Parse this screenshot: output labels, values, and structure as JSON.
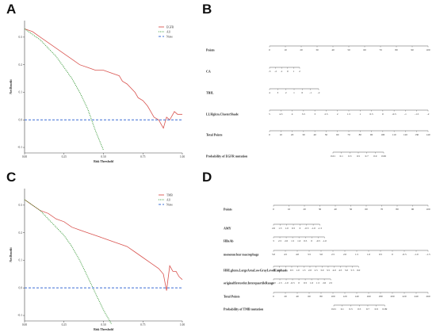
{
  "panels": {
    "A": "A",
    "B": "B",
    "C": "C",
    "D": "D"
  },
  "chart_data": [
    {
      "type": "line",
      "panel": "A",
      "xlabel": "Risk Threshold",
      "ylabel": "Net Benefit",
      "xlim": [
        0,
        1
      ],
      "ylim": [
        -0.12,
        0.36
      ],
      "xticks": [
        "0.00",
        "0.25",
        "0.50",
        "0.75",
        "1.00"
      ],
      "yticks": [
        "-0.1",
        "0.0",
        "0.1",
        "0.2",
        "0.3"
      ],
      "legend_position": "top-right",
      "series": [
        {
          "name": "EGFR",
          "color": "#d9534f",
          "dash": "solid",
          "x": [
            0.0,
            0.05,
            0.1,
            0.15,
            0.2,
            0.25,
            0.3,
            0.35,
            0.4,
            0.45,
            0.5,
            0.55,
            0.6,
            0.62,
            0.65,
            0.7,
            0.72,
            0.75,
            0.78,
            0.8,
            0.82,
            0.85,
            0.88,
            0.9,
            0.92,
            0.95,
            0.97,
            1.0
          ],
          "y": [
            0.33,
            0.32,
            0.3,
            0.28,
            0.26,
            0.24,
            0.22,
            0.2,
            0.19,
            0.18,
            0.18,
            0.17,
            0.16,
            0.14,
            0.13,
            0.1,
            0.08,
            0.07,
            0.05,
            0.03,
            0.01,
            0.0,
            -0.03,
            0.01,
            0.0,
            0.03,
            0.02,
            0.02
          ]
        },
        {
          "name": "All",
          "color": "#3a9a3a",
          "dash": "dotted",
          "x": [
            0.0,
            0.05,
            0.1,
            0.15,
            0.2,
            0.25,
            0.3,
            0.35,
            0.4,
            0.45,
            0.5
          ],
          "y": [
            0.33,
            0.31,
            0.29,
            0.26,
            0.23,
            0.19,
            0.15,
            0.1,
            0.04,
            -0.04,
            -0.11
          ]
        },
        {
          "name": "None",
          "color": "#3b6fd6",
          "dash": "dashed",
          "x": [
            0.0,
            1.0
          ],
          "y": [
            0.0,
            0.0
          ]
        }
      ]
    },
    {
      "type": "nomogram",
      "panel": "B",
      "rows": [
        {
          "label": "Points",
          "ticks": [
            "0",
            "10",
            "20",
            "30",
            "40",
            "50",
            "60",
            "70",
            "80",
            "90",
            "100"
          ]
        },
        {
          "label": "CA",
          "ticks": [
            "-3",
            "-2",
            "-1",
            "0",
            "1",
            "2"
          ]
        },
        {
          "label": "TBIL",
          "ticks": [
            "4",
            "3",
            "2",
            "1",
            "0",
            "-1",
            "-2"
          ]
        },
        {
          "label": "LLHglcm.ClusterShade",
          "ticks": [
            "5",
            "4.5",
            "4",
            "3.5",
            "3",
            "2.5",
            "2",
            "1.5",
            "1",
            "0.5",
            "0",
            "-0.5",
            "-1",
            "-1.5",
            "-2"
          ]
        },
        {
          "label": "Total Points",
          "ticks": [
            "0",
            "10",
            "20",
            "30",
            "40",
            "50",
            "60",
            "70",
            "80",
            "90",
            "100",
            "110",
            "120",
            "130",
            "140"
          ]
        },
        {
          "label": "Probability of EGFR mutation",
          "ticks": [
            "0.01",
            "0.1",
            "0.3",
            "0.5",
            "0.7",
            "0.9",
            "0.99"
          ]
        }
      ]
    },
    {
      "type": "line",
      "panel": "C",
      "xlabel": "Risk Threshold",
      "ylabel": "Net Benefit",
      "xlim": [
        0,
        1
      ],
      "ylim": [
        -0.12,
        0.36
      ],
      "xticks": [
        "0.00",
        "0.25",
        "0.50",
        "0.75",
        "1.00"
      ],
      "yticks": [
        "-0.1",
        "0.0",
        "0.1",
        "0.2",
        "0.3"
      ],
      "legend_position": "top-right",
      "series": [
        {
          "name": "TMB",
          "color": "#d9534f",
          "dash": "solid",
          "x": [
            0.0,
            0.05,
            0.1,
            0.15,
            0.2,
            0.25,
            0.3,
            0.35,
            0.4,
            0.45,
            0.5,
            0.55,
            0.6,
            0.65,
            0.7,
            0.75,
            0.8,
            0.85,
            0.88,
            0.9,
            0.92,
            0.94,
            0.96,
            0.98,
            1.0
          ],
          "y": [
            0.32,
            0.3,
            0.28,
            0.27,
            0.25,
            0.24,
            0.22,
            0.21,
            0.2,
            0.19,
            0.18,
            0.17,
            0.16,
            0.15,
            0.13,
            0.11,
            0.09,
            0.07,
            0.05,
            -0.01,
            0.08,
            0.06,
            0.06,
            0.04,
            0.03
          ]
        },
        {
          "name": "All",
          "color": "#3a9a3a",
          "dash": "dotted",
          "x": [
            0.0,
            0.05,
            0.1,
            0.15,
            0.2,
            0.25,
            0.3,
            0.35,
            0.4,
            0.45,
            0.5,
            0.55
          ],
          "y": [
            0.32,
            0.3,
            0.28,
            0.25,
            0.22,
            0.19,
            0.15,
            0.1,
            0.04,
            -0.02,
            -0.08,
            -0.13
          ]
        },
        {
          "name": "None",
          "color": "#3b6fd6",
          "dash": "dashed",
          "x": [
            0.0,
            1.0
          ],
          "y": [
            0.0,
            0.0
          ]
        }
      ]
    },
    {
      "type": "nomogram",
      "panel": "D",
      "rows": [
        {
          "label": "Points",
          "ticks": [
            "0",
            "10",
            "20",
            "30",
            "40",
            "50",
            "60",
            "70",
            "80",
            "90",
            "100"
          ]
        },
        {
          "label": "AMY",
          "ticks": [
            "2.0",
            "1.5",
            "1.0",
            "0.5",
            "0",
            "-0.5",
            "-1.0",
            "-1.5"
          ]
        },
        {
          "label": "HBsAb",
          "ticks": [
            "3",
            "2.5",
            "2.0",
            "1.5",
            "1.0",
            "0.5",
            "0",
            "-0.5",
            "-1.0"
          ]
        },
        {
          "label": "mononuclear macrophage",
          "ticks": [
            "5.0",
            "4.5",
            "4.0",
            "3.5",
            "3.0",
            "2.5",
            "2.0",
            "1.5",
            "1.0",
            "0.5",
            "0",
            "-0.5",
            "-1.0",
            "-1.5"
          ]
        },
        {
          "label": "HHLglszm.LargeAreaLowGrayLevelEmphasis",
          "ticks": [
            "-1.0",
            "-0.5",
            "0",
            "0.5",
            "1.0",
            "1.5",
            "2.0",
            "2.5",
            "3.0",
            "3.5",
            "4.0",
            "4.5",
            "5.0",
            "5.5",
            "6.0"
          ]
        },
        {
          "label": "originalfirstorder.InterquartileRange",
          "ticks": [
            "-2.0",
            "-1.5",
            "-1.0",
            "-0.5",
            "0",
            "0.5",
            "1.0",
            "1.5",
            "2.0",
            "2.5"
          ]
        },
        {
          "label": "Total Points",
          "ticks": [
            "0",
            "20",
            "40",
            "60",
            "80",
            "100",
            "120",
            "140",
            "160",
            "180",
            "200",
            "220",
            "240",
            "260"
          ]
        },
        {
          "label": "Probability of TMB mutation",
          "ticks": [
            "0.01",
            "0.1",
            "0.3",
            "0.5",
            "0.7",
            "0.9",
            "0.99"
          ]
        }
      ]
    }
  ]
}
